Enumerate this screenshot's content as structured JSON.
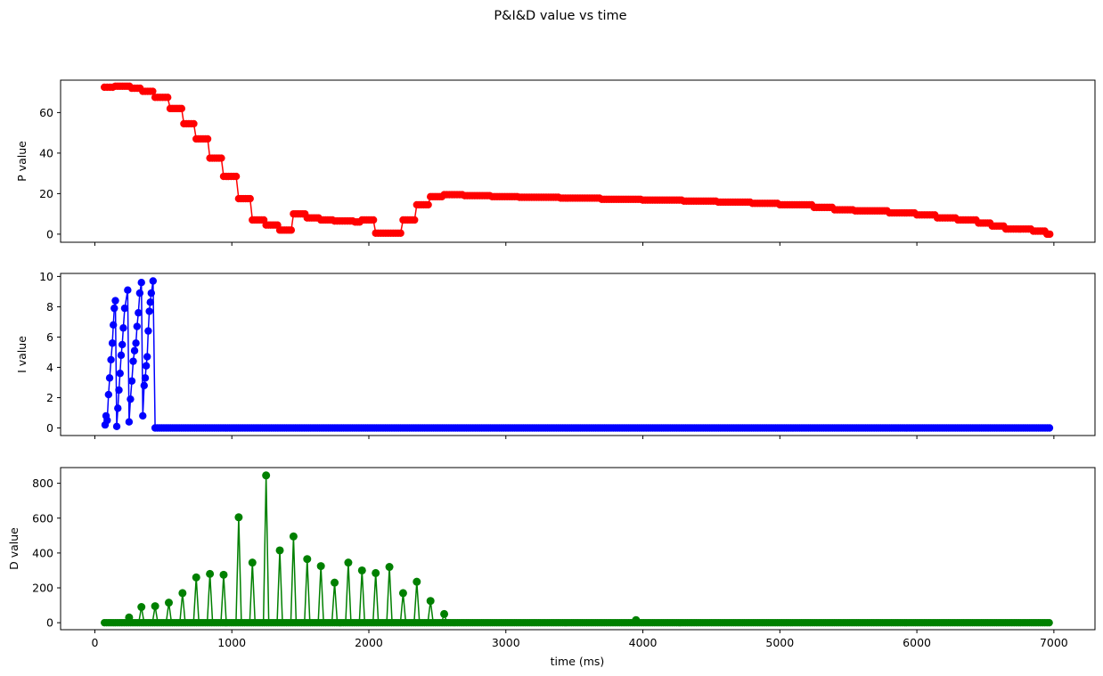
{
  "chart_data": {
    "type": "line",
    "title": "P&I&D value vs time",
    "xlabel": "time (ms)",
    "xlim": [
      -250,
      7300
    ],
    "x_ticks": [
      0,
      1000,
      2000,
      3000,
      4000,
      5000,
      6000,
      7000
    ],
    "x_tick_labels": [
      "0",
      "1000",
      "2000",
      "3000",
      "4000",
      "5000",
      "6000",
      "7000"
    ],
    "panels": [
      {
        "series_key": "P",
        "ylabel": "P value",
        "color": "#ff0000",
        "ylim": [
          -4,
          76
        ],
        "y_ticks": [
          0,
          20,
          40,
          60
        ],
        "y_tick_labels": [
          "0",
          "20",
          "40",
          "60"
        ],
        "show_x_tick_labels": false,
        "style": "line-markers",
        "steps": [
          [
            70,
            72.5
          ],
          [
            150,
            73
          ],
          [
            270,
            72
          ],
          [
            350,
            70.5
          ],
          [
            440,
            67.5
          ],
          [
            550,
            62
          ],
          [
            650,
            54.5
          ],
          [
            740,
            47
          ],
          [
            840,
            37.5
          ],
          [
            940,
            28.5
          ],
          [
            1050,
            17.5
          ],
          [
            1150,
            7
          ],
          [
            1250,
            4.5
          ],
          [
            1350,
            2
          ],
          [
            1450,
            10
          ],
          [
            1550,
            8
          ],
          [
            1650,
            7
          ],
          [
            1750,
            6.5
          ],
          [
            1900,
            6
          ],
          [
            1950,
            7
          ],
          [
            2050,
            0.5
          ],
          [
            2250,
            7
          ],
          [
            2350,
            14.5
          ],
          [
            2450,
            18.5
          ],
          [
            2550,
            19.5
          ],
          [
            2700,
            19
          ],
          [
            2900,
            18.5
          ],
          [
            3100,
            18.2
          ],
          [
            3400,
            17.8
          ],
          [
            3700,
            17.2
          ],
          [
            4000,
            16.8
          ],
          [
            4300,
            16.3
          ],
          [
            4550,
            15.8
          ],
          [
            4800,
            15.2
          ],
          [
            5000,
            14.5
          ],
          [
            5250,
            13.2
          ],
          [
            5400,
            12
          ],
          [
            5550,
            11.5
          ],
          [
            5800,
            10.5
          ],
          [
            6000,
            9.5
          ],
          [
            6150,
            8
          ],
          [
            6300,
            7
          ],
          [
            6450,
            5.5
          ],
          [
            6550,
            4
          ],
          [
            6650,
            2.5
          ],
          [
            6850,
            1.5
          ],
          [
            6950,
            0
          ]
        ],
        "x_end": 6970,
        "x_step_pts": 18
      },
      {
        "series_key": "I",
        "ylabel": "I value",
        "color": "#0000ff",
        "ylim": [
          -0.5,
          10.2
        ],
        "y_ticks": [
          0,
          2,
          4,
          6,
          8,
          10
        ],
        "y_tick_labels": [
          "0",
          "2",
          "4",
          "6",
          "8",
          "10"
        ],
        "show_x_tick_labels": false,
        "style": "line-markers",
        "points": [
          [
            75,
            0.2
          ],
          [
            82,
            0.8
          ],
          [
            90,
            0.5
          ],
          [
            100,
            2.2
          ],
          [
            108,
            3.3
          ],
          [
            118,
            4.5
          ],
          [
            128,
            5.6
          ],
          [
            135,
            6.8
          ],
          [
            142,
            7.9
          ],
          [
            150,
            8.4
          ],
          [
            160,
            0.1
          ],
          [
            168,
            1.3
          ],
          [
            176,
            2.5
          ],
          [
            184,
            3.6
          ],
          [
            192,
            4.8
          ],
          [
            200,
            5.5
          ],
          [
            208,
            6.6
          ],
          [
            218,
            7.9
          ],
          [
            240,
            9.1
          ],
          [
            250,
            0.4
          ],
          [
            260,
            1.9
          ],
          [
            270,
            3.1
          ],
          [
            280,
            4.4
          ],
          [
            290,
            5.1
          ],
          [
            300,
            5.6
          ],
          [
            308,
            6.7
          ],
          [
            318,
            7.6
          ],
          [
            328,
            8.9
          ],
          [
            340,
            9.6
          ],
          [
            350,
            0.8
          ],
          [
            360,
            2.8
          ],
          [
            368,
            3.3
          ],
          [
            375,
            4.1
          ],
          [
            382,
            4.7
          ],
          [
            390,
            6.4
          ],
          [
            398,
            7.7
          ],
          [
            405,
            8.3
          ],
          [
            412,
            8.9
          ],
          [
            425,
            9.7
          ],
          [
            440,
            0
          ]
        ],
        "flat_value": 0,
        "flat_from": 440,
        "flat_to": 6970,
        "flat_step": 16
      },
      {
        "series_key": "D",
        "ylabel": "D value",
        "color": "#008000",
        "ylim": [
          -40,
          890
        ],
        "y_ticks": [
          0,
          200,
          400,
          600,
          800
        ],
        "y_tick_labels": [
          "0",
          "200",
          "400",
          "600",
          "800"
        ],
        "show_x_tick_labels": true,
        "style": "spikes",
        "spikes": [
          [
            250,
            30
          ],
          [
            340,
            90
          ],
          [
            440,
            95
          ],
          [
            540,
            115
          ],
          [
            640,
            170
          ],
          [
            740,
            260
          ],
          [
            840,
            280
          ],
          [
            940,
            275
          ],
          [
            1050,
            605
          ],
          [
            1150,
            345
          ],
          [
            1250,
            845
          ],
          [
            1350,
            415
          ],
          [
            1450,
            495
          ],
          [
            1550,
            365
          ],
          [
            1650,
            325
          ],
          [
            1750,
            230
          ],
          [
            1850,
            345
          ],
          [
            1950,
            300
          ],
          [
            2050,
            285
          ],
          [
            2150,
            320
          ],
          [
            2250,
            170
          ],
          [
            2350,
            235
          ],
          [
            2450,
            125
          ],
          [
            2550,
            50
          ],
          [
            3950,
            15
          ]
        ],
        "flat_value": 0,
        "flat_from": 70,
        "flat_to": 6970,
        "flat_step": 16
      }
    ]
  }
}
